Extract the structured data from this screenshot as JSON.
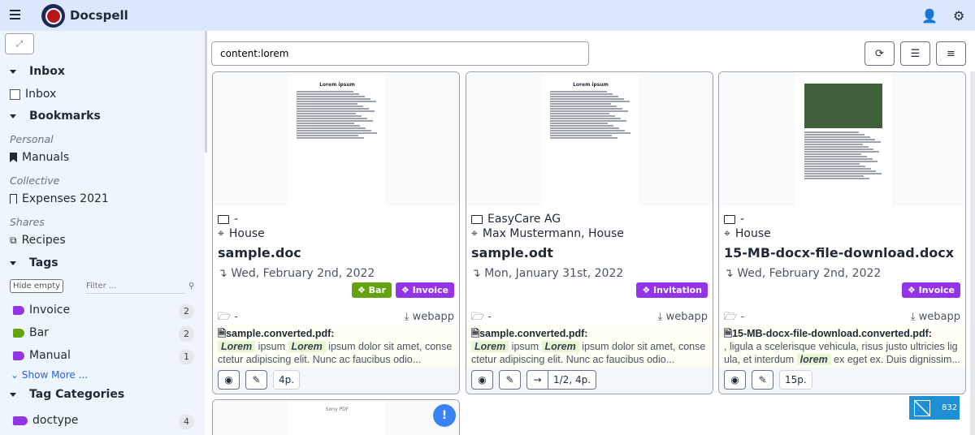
{
  "header": {
    "brand": "Docspell"
  },
  "sidebar": {
    "inbox_head": "Inbox",
    "inbox_item": "Inbox",
    "bookmarks_head": "Bookmarks",
    "personal": "Personal",
    "manuals": "Manuals",
    "collective": "Collective",
    "expenses": "Expenses 2021",
    "shares": "Shares",
    "recipes": "Recipes",
    "tags_head": "Tags",
    "hide_empty": "Hide empty",
    "filter_placeholder": "Filter ...",
    "tags": [
      {
        "label": "Invoice",
        "count": "2",
        "color": "#9333ea"
      },
      {
        "label": "Bar",
        "count": "2",
        "color": "#65a30d"
      },
      {
        "label": "Manual",
        "count": "1",
        "color": "#9333ea"
      }
    ],
    "show_more": "Show More ...",
    "tagcat_head": "Tag Categories",
    "categories": [
      {
        "label": "doctype",
        "count": "4"
      }
    ]
  },
  "search": {
    "value": "content:lorem"
  },
  "cards": [
    {
      "correspondent": "-",
      "concerning": "House",
      "title": "sample.doc",
      "date": "Wed, February 2nd, 2022",
      "tags": [
        {
          "label": "Bar",
          "color": "#65a30d"
        },
        {
          "label": "Invoice",
          "color": "#9333ea"
        }
      ],
      "folder": "-",
      "source": "webapp",
      "file": "sample.converted.pdf:",
      "h1": "Lorem",
      "t1": " ipsum ",
      "h2": "Lorem",
      "t2": " ipsum dolor sit amet, consectetur adipiscing elit. Nunc ac faucibus odio...",
      "pages": "4p.",
      "preview_title": "Lorem ipsum"
    },
    {
      "correspondent": "EasyCare AG",
      "concerning": "Max Mustermann, House",
      "title": "sample.odt",
      "date": "Mon, January 31st, 2022",
      "tags": [
        {
          "label": "Invitation",
          "color": "#9333ea"
        }
      ],
      "folder": "-",
      "source": "webapp",
      "file": "sample.converted.pdf:",
      "h1": "Lorem",
      "t1": " ipsum ",
      "h2": "Lorem",
      "t2": " ipsum dolor sit amet, consectetur adipiscing elit. Nunc ac faucibus odio...",
      "pages": "1/2, 4p.",
      "preview_title": "Lorem ipsum"
    },
    {
      "correspondent": "-",
      "concerning": "House",
      "title": "15-MB-docx-file-download.docx",
      "date": "Wed, February 2nd, 2022",
      "tags": [
        {
          "label": "Invoice",
          "color": "#9333ea"
        }
      ],
      "folder": "-",
      "source": "webapp",
      "file": "15-MB-docx-file-download.converted.pdf:",
      "t0": ", ligula a scelerisque vehicula, risus justo ultricies ligula, et interdum ",
      "h1": "lorem",
      "t1": " ex eget ex. Duis dignissim...",
      "pages": "15p."
    }
  ],
  "card4": {
    "preview_title": "Sony PDF"
  },
  "badge": {
    "count": "832"
  }
}
